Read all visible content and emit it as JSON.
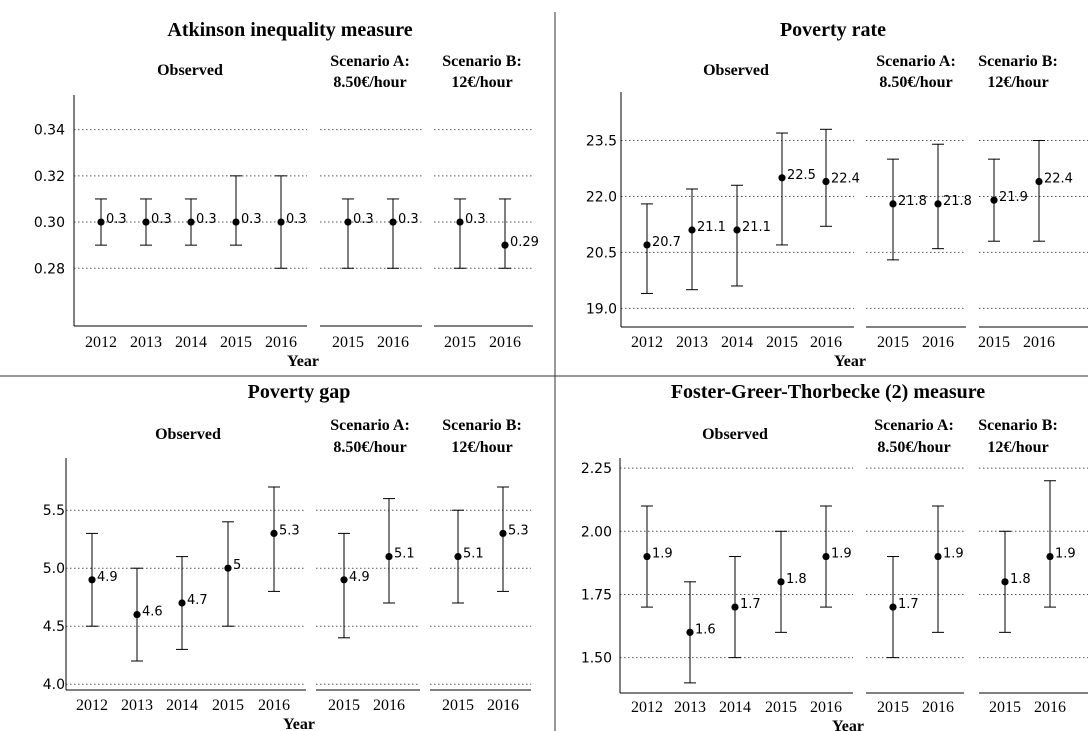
{
  "chart_data": [
    {
      "type": "scatter",
      "title": "Atkinson inequality measure",
      "xlabel": "Year",
      "ylim": [
        0.255,
        0.355
      ],
      "yticks": [
        0.28,
        0.3,
        0.32,
        0.34
      ],
      "yticklabels": [
        "0.28",
        "0.30",
        "0.32",
        "0.34"
      ],
      "groups": [
        {
          "header": [
            "Observed"
          ],
          "x": [
            "2012",
            "2013",
            "2014",
            "2015",
            "2016"
          ],
          "values": [
            0.3,
            0.3,
            0.3,
            0.3,
            0.3
          ],
          "lower": [
            0.29,
            0.29,
            0.29,
            0.29,
            0.28
          ],
          "upper": [
            0.31,
            0.31,
            0.31,
            0.32,
            0.32
          ],
          "labels": [
            "0.3",
            "0.3",
            "0.3",
            "0.3",
            "0.3"
          ]
        },
        {
          "header": [
            "Scenario A:",
            "8.50€/hour"
          ],
          "x": [
            "2015",
            "2016"
          ],
          "values": [
            0.3,
            0.3
          ],
          "lower": [
            0.28,
            0.28
          ],
          "upper": [
            0.31,
            0.31
          ],
          "labels": [
            "0.3",
            "0.3"
          ]
        },
        {
          "header": [
            "Scenario B:",
            "12€/hour"
          ],
          "x": [
            "2015",
            "2016"
          ],
          "values": [
            0.3,
            0.29
          ],
          "lower": [
            0.28,
            0.28
          ],
          "upper": [
            0.31,
            0.31
          ],
          "labels": [
            "0.3",
            "0.29"
          ]
        }
      ]
    },
    {
      "type": "scatter",
      "title": "Poverty rate",
      "xlabel": "Year",
      "ylim": [
        18.5,
        24.8
      ],
      "yticks": [
        19.0,
        20.5,
        22.0,
        23.5
      ],
      "yticklabels": [
        "19.0",
        "20.5",
        "22.0",
        "23.5"
      ],
      "groups": [
        {
          "header": [
            "Observed"
          ],
          "x": [
            "2012",
            "2013",
            "2014",
            "2015",
            "2016"
          ],
          "values": [
            20.7,
            21.1,
            21.1,
            22.5,
            22.4
          ],
          "lower": [
            19.4,
            19.5,
            19.6,
            20.7,
            21.2
          ],
          "upper": [
            21.8,
            22.2,
            22.3,
            23.7,
            23.8
          ],
          "labels": [
            "20.7",
            "21.1",
            "21.1",
            "22.5",
            "22.4"
          ]
        },
        {
          "header": [
            "Scenario A:",
            "8.50€/hour"
          ],
          "x": [
            "2015",
            "2016"
          ],
          "values": [
            21.8,
            21.8
          ],
          "lower": [
            20.3,
            20.6
          ],
          "upper": [
            23.0,
            23.4
          ],
          "labels": [
            "21.8",
            "21.8"
          ]
        },
        {
          "header": [
            "Scenario B:",
            "12€/hour"
          ],
          "x": [
            "2015",
            "2016"
          ],
          "values": [
            21.9,
            22.4
          ],
          "lower": [
            20.8,
            20.8
          ],
          "upper": [
            23.0,
            23.5
          ],
          "labels": [
            "21.9",
            "22.4"
          ]
        }
      ]
    },
    {
      "type": "scatter",
      "title": "Poverty gap",
      "xlabel": "Year",
      "ylim": [
        3.95,
        5.95
      ],
      "yticks": [
        4.0,
        4.5,
        5.0,
        5.5
      ],
      "yticklabels": [
        "4.0",
        "4.5",
        "5.0",
        "5.5"
      ],
      "groups": [
        {
          "header": [
            "Observed"
          ],
          "x": [
            "2012",
            "2013",
            "2014",
            "2015",
            "2016"
          ],
          "values": [
            4.9,
            4.6,
            4.7,
            5.0,
            5.3
          ],
          "lower": [
            4.5,
            4.2,
            4.3,
            4.5,
            4.8
          ],
          "upper": [
            5.3,
            5.0,
            5.1,
            5.4,
            5.7
          ],
          "labels": [
            "4.9",
            "4.6",
            "4.7",
            "5",
            "5.3"
          ]
        },
        {
          "header": [
            "Scenario A:",
            "8.50€/hour"
          ],
          "x": [
            "2015",
            "2016"
          ],
          "values": [
            4.9,
            5.1
          ],
          "lower": [
            4.4,
            4.7
          ],
          "upper": [
            5.3,
            5.6
          ],
          "labels": [
            "4.9",
            "5.1"
          ]
        },
        {
          "header": [
            "Scenario B:",
            "12€/hour"
          ],
          "x": [
            "2015",
            "2016"
          ],
          "values": [
            5.1,
            5.3
          ],
          "lower": [
            4.7,
            4.8
          ],
          "upper": [
            5.5,
            5.7
          ],
          "labels": [
            "5.1",
            "5.3"
          ]
        }
      ]
    },
    {
      "type": "scatter",
      "title": "Foster-Greer-Thorbecke  (2) measure",
      "xlabel": "Year",
      "ylim": [
        1.36,
        2.29
      ],
      "yticks": [
        1.5,
        1.75,
        2.0,
        2.25
      ],
      "yticklabels": [
        "1.50",
        "1.75",
        "2.00",
        "2.25"
      ],
      "groups": [
        {
          "header": [
            "Observed"
          ],
          "x": [
            "2012",
            "2013",
            "2014",
            "2015",
            "2016"
          ],
          "values": [
            1.9,
            1.6,
            1.7,
            1.8,
            1.9
          ],
          "lower": [
            1.7,
            1.4,
            1.5,
            1.6,
            1.7
          ],
          "upper": [
            2.1,
            1.8,
            1.9,
            2.0,
            2.1
          ],
          "labels": [
            "1.9",
            "1.6",
            "1.7",
            "1.8",
            "1.9"
          ]
        },
        {
          "header": [
            "Scenario A:",
            "8.50€/hour"
          ],
          "x": [
            "2015",
            "2016"
          ],
          "values": [
            1.7,
            1.9
          ],
          "lower": [
            1.5,
            1.6
          ],
          "upper": [
            1.9,
            2.1
          ],
          "labels": [
            "1.7",
            "1.9"
          ]
        },
        {
          "header": [
            "Scenario B:",
            "12€/hour"
          ],
          "x": [
            "2015",
            "2016"
          ],
          "values": [
            1.8,
            1.9
          ],
          "lower": [
            1.6,
            1.7
          ],
          "upper": [
            2.0,
            2.2
          ],
          "labels": [
            "1.8",
            "1.9"
          ]
        }
      ]
    }
  ]
}
